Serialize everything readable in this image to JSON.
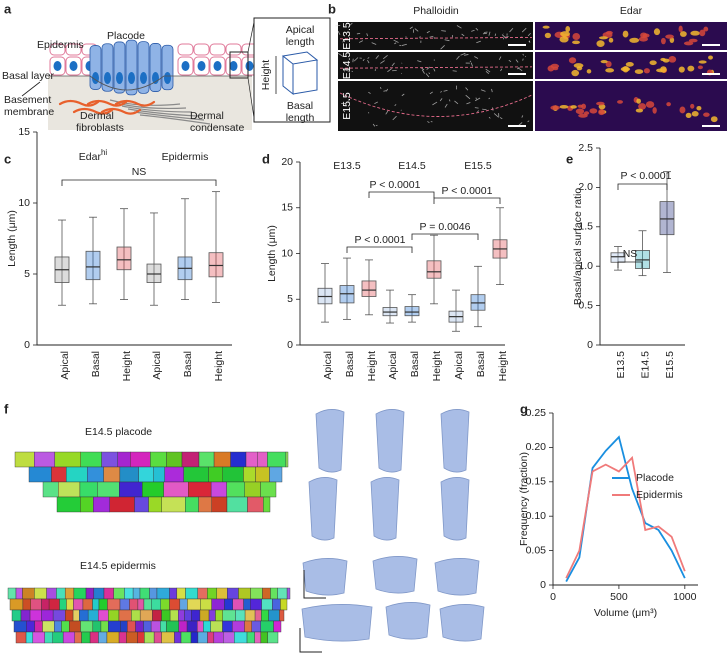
{
  "panel_labels": [
    "a",
    "b",
    "c",
    "d",
    "e",
    "f",
    "g"
  ],
  "schematic": {
    "labels": [
      [
        "Epidermis"
      ],
      [
        "Placode"
      ],
      [
        "Basal layer"
      ],
      [
        "Basement",
        "membrane"
      ],
      [
        "Dermal",
        "fibroblasts"
      ],
      [
        "Dermal",
        "condensate"
      ],
      [
        "Apical",
        "length"
      ],
      [
        "Height"
      ],
      [
        "Basal",
        "length"
      ]
    ]
  },
  "micrographs": {
    "stains": [
      "Phalloidin",
      "Edar"
    ],
    "stages": [
      "E13.5",
      "E14.5",
      "E15.5"
    ]
  },
  "renders": {
    "titles": [
      "E14.5 placode",
      "E14.5 epidermis"
    ]
  },
  "chart_data": [
    {
      "type": "box",
      "ylabel": "Length (μm)",
      "groups": [
        {
          "label": "Edar",
          "superscript": "hi"
        },
        {
          "label": "Epidermis"
        }
      ],
      "categories": [
        "Apical",
        "Basal",
        "Height",
        "Apical",
        "Basal",
        "Height"
      ],
      "colors": [
        "#9a9a9a",
        "#1f6fd1",
        "#e0474c",
        "#9a9a9a",
        "#1f6fd1",
        "#e0474c"
      ],
      "values": [
        [
          2.8,
          4.4,
          5.3,
          6.2,
          8.8
        ],
        [
          2.9,
          4.6,
          5.5,
          6.6,
          9.0
        ],
        [
          3.2,
          5.3,
          6.0,
          6.9,
          9.6
        ],
        [
          2.8,
          4.4,
          5.0,
          5.7,
          9.3
        ],
        [
          3.2,
          4.6,
          5.4,
          6.2,
          10.3
        ],
        [
          3.0,
          4.8,
          5.6,
          6.5,
          10.8
        ]
      ],
      "ylim": [
        0,
        15
      ],
      "yticks": [
        0,
        5,
        10,
        15
      ],
      "annotations": [
        "NS"
      ]
    },
    {
      "type": "box",
      "ylabel": "Length (μm)",
      "groups": [
        {
          "label": "E13.5"
        },
        {
          "label": "E14.5"
        },
        {
          "label": "E15.5"
        }
      ],
      "categories": [
        "Apical",
        "Basal",
        "Height",
        "Apical",
        "Basal",
        "Height",
        "Apical",
        "Basal",
        "Height"
      ],
      "colors": [
        "#9ab8e0",
        "#1f6fd1",
        "#e0474c",
        "#9ab8e0",
        "#1f6fd1",
        "#e0474c",
        "#9ab8e0",
        "#1f6fd1",
        "#e0474c"
      ],
      "values": [
        [
          2.5,
          4.5,
          5.3,
          6.2,
          8.9
        ],
        [
          2.8,
          4.6,
          5.6,
          6.5,
          9.5
        ],
        [
          3.3,
          5.3,
          6.0,
          7.0,
          9.3
        ],
        [
          2.4,
          3.2,
          3.6,
          4.1,
          6.0
        ],
        [
          2.5,
          3.2,
          3.6,
          4.2,
          5.5
        ],
        [
          4.5,
          7.3,
          8.0,
          9.2,
          12.0
        ],
        [
          1.5,
          2.5,
          3.1,
          3.7,
          6.0
        ],
        [
          2.0,
          3.8,
          4.6,
          5.5,
          8.6
        ],
        [
          6.6,
          9.5,
          10.5,
          11.5,
          15.0
        ]
      ],
      "ylim": [
        0,
        20
      ],
      "yticks": [
        0,
        5,
        10,
        15,
        20
      ],
      "annotations": [
        "P < 0.0001",
        "P < 0.0001",
        "P < 0.0001",
        "P = 0.0046"
      ]
    },
    {
      "type": "box",
      "ylabel": "Basal/apical surface ratio",
      "categories": [
        "E13.5",
        "E14.5",
        "E15.5"
      ],
      "colors": [
        "#a9c4e8",
        "#20a7b5",
        "#1f2a7a"
      ],
      "values": [
        [
          0.95,
          1.05,
          1.12,
          1.17,
          1.25
        ],
        [
          0.88,
          0.97,
          1.08,
          1.2,
          1.45
        ],
        [
          0.92,
          1.4,
          1.6,
          1.82,
          2.2
        ]
      ],
      "ylim": [
        0,
        2.5
      ],
      "yticks": [
        0,
        0.5,
        {
          "value": 1.0,
          "label": "1.0"
        },
        1.5,
        {
          "value": 2.0,
          "label": "2.0"
        },
        2.5
      ],
      "annotations": [
        "NS",
        "P < 0.0001"
      ]
    },
    {
      "type": "line",
      "xlabel": "Volume (μm³)",
      "ylabel": "Frequency (fraction)",
      "x": [
        100,
        200,
        300,
        400,
        500,
        600,
        700,
        800,
        900,
        1000
      ],
      "series": [
        {
          "name": "Placode",
          "color": "#1a8fe0",
          "values": [
            0.005,
            0.04,
            0.17,
            0.195,
            0.215,
            0.14,
            0.09,
            0.08,
            0.05,
            0.01
          ]
        },
        {
          "name": "Epidermis",
          "color": "#f07a7a",
          "values": [
            0.01,
            0.05,
            0.165,
            0.175,
            0.165,
            0.185,
            0.08,
            0.085,
            0.07,
            0.02
          ]
        }
      ],
      "xlim": [
        0,
        1100
      ],
      "xticks": [
        0,
        500,
        1000
      ],
      "ylim": [
        0,
        0.25
      ],
      "yticks": [
        0,
        0.05,
        {
          "value": 0.1,
          "label": "0.10"
        },
        0.15,
        {
          "value": 0.2,
          "label": "0.20"
        },
        0.25
      ],
      "legend": "upper right"
    }
  ]
}
